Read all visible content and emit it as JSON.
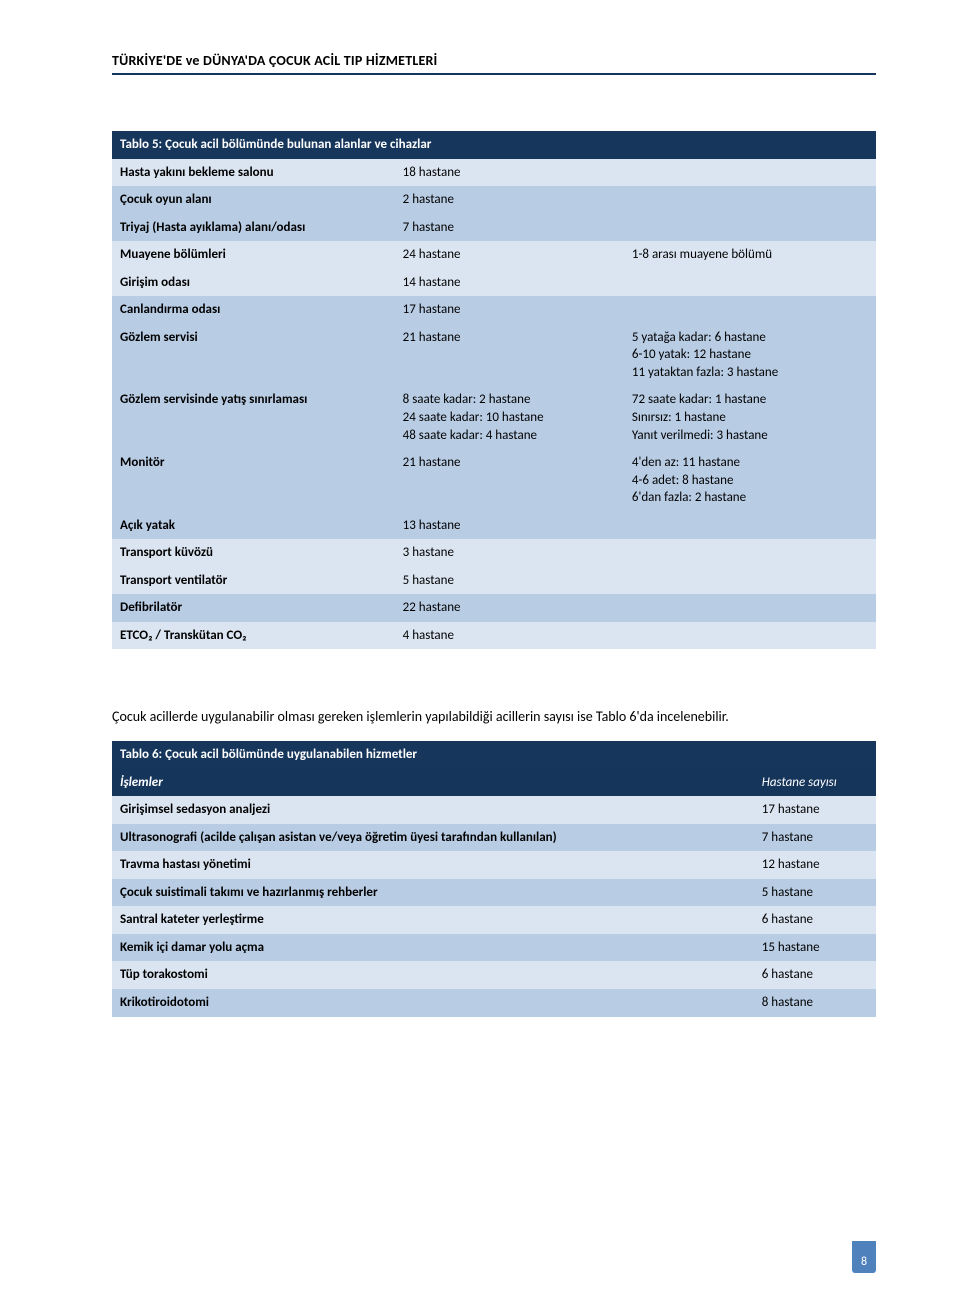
{
  "header": {
    "title": "TÜRKİYE'DE ve DÜNYA'DA ÇOCUK ACİL TIP HİZMETLERİ"
  },
  "colors": {
    "title_bg": "#16365c",
    "title_fg": "#ffffff",
    "band_light": "#dbe5f1",
    "band_dark": "#b8cce4",
    "header_rule": "#16365c",
    "badge_bg": "#4f81bd"
  },
  "typography": {
    "body_font": "Calibri",
    "header_fontsize_pt": 10.5,
    "table_fontsize_pt": 10,
    "para_fontsize_pt": 10.5
  },
  "table5": {
    "type": "table",
    "title": "Tablo 5: Çocuk acil bölümünde bulunan alanlar ve cihazlar",
    "columns": 3,
    "col_widths_pct": [
      37,
      30,
      33
    ],
    "rows": [
      {
        "band": "light",
        "cells": [
          "Hasta yakını bekleme salonu",
          "18 hastane",
          ""
        ]
      },
      {
        "band": "dark",
        "cells": [
          "Çocuk oyun alanı",
          "2 hastane",
          ""
        ]
      },
      {
        "band": "dark",
        "cells": [
          "Triyaj (Hasta ayıklama) alanı/odası",
          "7 hastane",
          ""
        ]
      },
      {
        "band": "light",
        "cells": [
          "Muayene bölümleri",
          "24 hastane",
          "1-8 arası muayene bölümü"
        ]
      },
      {
        "band": "light",
        "cells": [
          "Girişim odası",
          "14 hastane",
          ""
        ]
      },
      {
        "band": "dark",
        "cells": [
          "Canlandırma odası",
          "17 hastane",
          ""
        ]
      },
      {
        "band": "dark",
        "cells": [
          "Gözlem servisi",
          "21 hastane",
          "5 yatağa kadar: 6 hastane\n6-10 yatak: 12 hastane\n11 yataktan fazla: 3 hastane"
        ]
      },
      {
        "band": "dark",
        "cells": [
          "Gözlem servisinde yatış sınırlaması",
          "8 saate kadar: 2 hastane\n24 saate kadar: 10 hastane\n48 saate kadar: 4 hastane",
          "72 saate kadar:  1 hastane\nSınırsız: 1 hastane\nYanıt verilmedi: 3 hastane"
        ]
      },
      {
        "band": "dark",
        "cells": [
          "Monitör",
          "21 hastane",
          "4'den az: 11 hastane\n4-6 adet: 8 hastane\n6'dan fazla: 2 hastane"
        ]
      },
      {
        "band": "dark",
        "cells": [
          "Açık yatak",
          "13 hastane",
          ""
        ]
      },
      {
        "band": "light",
        "cells": [
          "Transport küvözü",
          "3 hastane",
          ""
        ]
      },
      {
        "band": "light",
        "cells": [
          "Transport ventilatör",
          "5 hastane",
          ""
        ]
      },
      {
        "band": "dark",
        "cells": [
          "Defibrilatör",
          "22 hastane",
          ""
        ]
      },
      {
        "band": "light",
        "cells": [
          "ETCO₂ / Transkütan CO₂",
          "4 hastane",
          ""
        ]
      }
    ]
  },
  "paragraph": "Çocuk acillerde uygulanabilir olması gereken işlemlerin yapılabildiği acillerin sayısı ise Tablo 6'da incelenebilir.",
  "table6": {
    "type": "table",
    "title": "Tablo 6: Çocuk acil bölümünde uygulanabilen hizmetler",
    "header": [
      "İşlemler",
      "Hastane sayısı"
    ],
    "columns": 2,
    "col_widths_pct": [
      84,
      16
    ],
    "rows": [
      {
        "band": "light",
        "cells": [
          "Girişimsel sedasyon analjezi",
          "17 hastane"
        ]
      },
      {
        "band": "dark",
        "cells": [
          "Ultrasonografi (acilde çalışan asistan ve/veya öğretim üyesi tarafından kullanılan)",
          "7 hastane"
        ]
      },
      {
        "band": "light",
        "cells": [
          "Travma hastası yönetimi",
          "12 hastane"
        ]
      },
      {
        "band": "dark",
        "cells": [
          "Çocuk suistimali takımı ve hazırlanmış rehberler",
          "5 hastane"
        ]
      },
      {
        "band": "light",
        "cells": [
          "Santral kateter yerleştirme",
          "6 hastane"
        ]
      },
      {
        "band": "dark",
        "cells": [
          "Kemik içi damar yolu açma",
          "15  hastane"
        ]
      },
      {
        "band": "light",
        "cells": [
          "Tüp torakostomi",
          "6  hastane"
        ]
      },
      {
        "band": "dark",
        "cells": [
          "Krikotiroidotomi",
          "8 hastane"
        ]
      }
    ]
  },
  "page_number": "8"
}
